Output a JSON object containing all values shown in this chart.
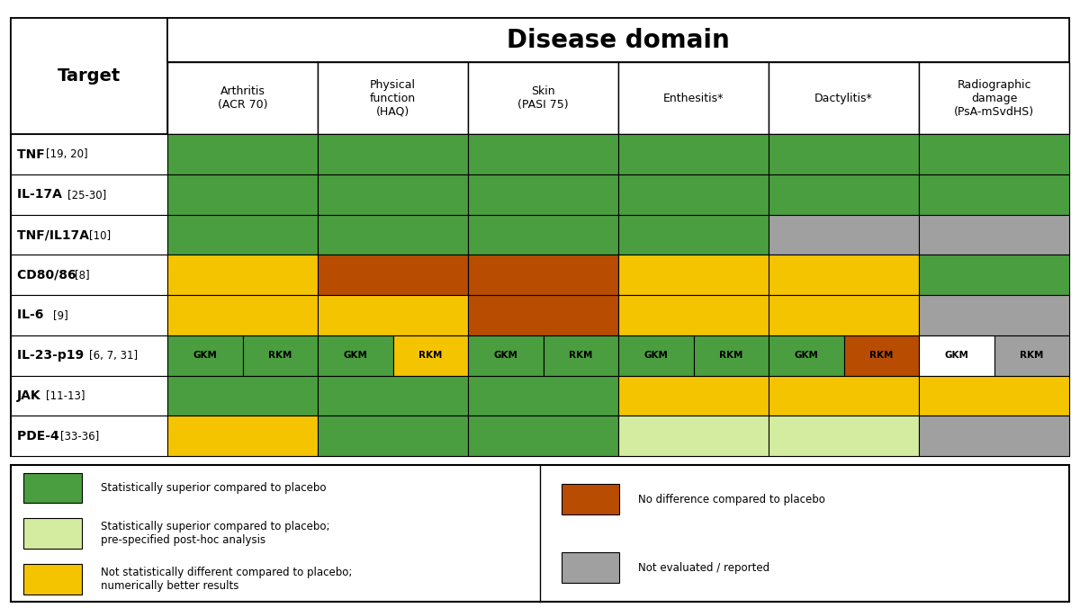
{
  "title": "Disease domain",
  "col_header": [
    "Arthritis\n(ACR 70)",
    "Physical\nfunction\n(HAQ)",
    "Skin\n(PASI 75)",
    "Enthesitis*",
    "Dactylitis*",
    "Radiographic\ndamage\n(PsA-mSvdHS)"
  ],
  "row_header": [
    "TNF [19, 20]",
    "IL-17A [25-30]",
    "TNF/IL17A [10]",
    "CD80/86 [8]",
    "IL-6 [9]",
    "IL-23-p19 [6, 7, 31]",
    "JAK [11-13]",
    "PDE-4 [33-36]"
  ],
  "G": "#4a9e3f",
  "LG": "#d4eca0",
  "Y": "#f5c400",
  "O": "#b84c00",
  "GR": "#a0a0a0",
  "W": "#ffffff",
  "cell_colors": [
    [
      "G",
      "G",
      "G",
      "G",
      "G",
      "G"
    ],
    [
      "G",
      "G",
      "G",
      "G",
      "G",
      "G"
    ],
    [
      "G",
      "G",
      "G",
      "G",
      "GR",
      "GR"
    ],
    [
      "Y",
      "O",
      "O",
      "Y",
      "Y",
      "G"
    ],
    [
      "Y",
      "Y",
      "O",
      "Y",
      "Y",
      "GR"
    ],
    null,
    [
      "G",
      "G",
      "G",
      "Y",
      "Y",
      "Y"
    ],
    [
      "Y",
      "G",
      "G",
      "LG",
      "LG",
      "GR"
    ]
  ],
  "il23_colors": [
    [
      "G",
      "G"
    ],
    [
      "G",
      "Y"
    ],
    [
      "G",
      "G"
    ],
    [
      "G",
      "G"
    ],
    [
      "G",
      "O"
    ],
    [
      "W",
      "GR"
    ]
  ],
  "legend_left": [
    {
      "color": "#4a9e3f",
      "label": "Statistically superior compared to placebo"
    },
    {
      "color": "#d4eca0",
      "label": "Statistically superior compared to placebo;\npre-specified post-hoc analysis"
    },
    {
      "color": "#f5c400",
      "label": "Not statistically different compared to placebo;\nnumerically better results"
    }
  ],
  "legend_right": [
    {
      "color": "#b84c00",
      "label": "No difference compared to placebo"
    },
    {
      "color": "#a0a0a0",
      "label": "Not evaluated / reported"
    }
  ]
}
